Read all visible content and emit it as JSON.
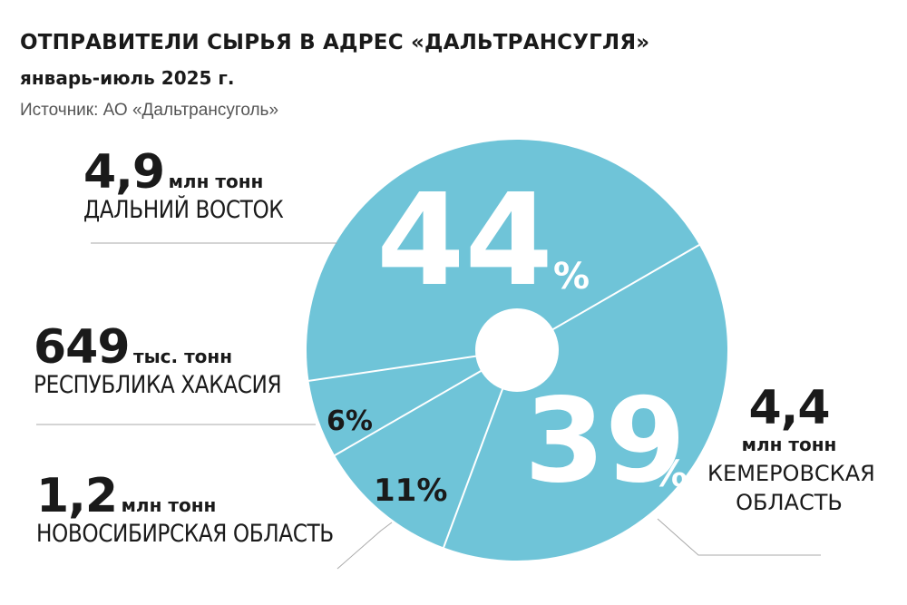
{
  "header": {
    "title": "ОТПРАВИТЕЛИ СЫРЬЯ В АДРЕС «ДАЛЬТРАНСУГЛЯ»",
    "subtitle": "январь-июль 2025 г.",
    "source": "Источник: АО «Дальтрансуголь»"
  },
  "callouts": {
    "far_east": {
      "value": "4,9",
      "unit": "млн тонн",
      "region": "ДАЛЬНИЙ ВОСТОК"
    },
    "khakassia": {
      "value": "649",
      "unit": "тыс. тонн",
      "region": "РЕСПУБЛИКА ХАКАСИЯ"
    },
    "novosibirsk": {
      "value": "1,2",
      "unit": "млн тонн",
      "region": "НОВОСИБИРСКАЯ ОБЛАСТЬ"
    },
    "kemerovo": {
      "value": "4,4",
      "unit": "млн тонн",
      "region_line1": "КЕМЕРОВСКАЯ",
      "region_line2": "ОБЛАСТЬ"
    }
  },
  "colors": {
    "slice": "#6fc4d8",
    "divider": "#ffffff",
    "dark_text": "#1a1a1a",
    "leader": "#aaaaaa"
  },
  "chart_data": {
    "type": "pie",
    "donut_hole": true,
    "slices": [
      {
        "label": "ДАЛЬНИЙ ВОСТОК",
        "value": 44,
        "display": "44",
        "pct_sign": "%",
        "amount": "4,9 млн тонн"
      },
      {
        "label": "КЕМЕРОВСКАЯ ОБЛАСТЬ",
        "value": 39,
        "display": "39",
        "pct_sign": "%",
        "amount": "4,4 млн тонн"
      },
      {
        "label": "НОВОСИБИРСКАЯ ОБЛАСТЬ",
        "value": 11,
        "display": "11%",
        "amount": "1,2 млн тонн"
      },
      {
        "label": "РЕСПУБЛИКА ХАКАСИЯ",
        "value": 6,
        "display": "6%",
        "amount": "649 тыс. тонн"
      }
    ]
  }
}
